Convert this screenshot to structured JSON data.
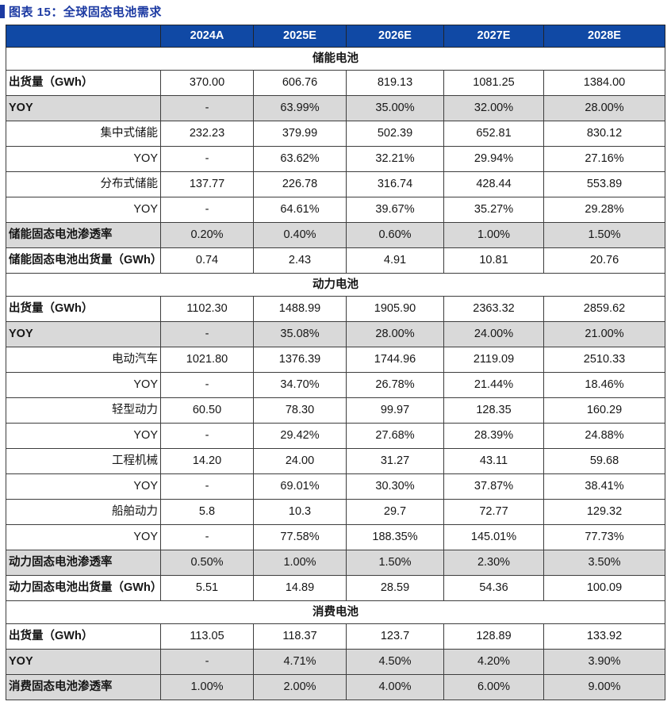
{
  "title": "图表 15：全球固态电池需求",
  "colors": {
    "title_blue": "#1c3aa2",
    "header_blue": "#1049a5",
    "shaded_gray": "#d9d9d9",
    "border": "#3d3d3d"
  },
  "table": {
    "columns": [
      "",
      "2024A",
      "2025E",
      "2026E",
      "2027E",
      "2028E"
    ],
    "sections": [
      {
        "title": "储能电池",
        "rows": [
          {
            "label": "出货量（GWh）",
            "style": "bold-left",
            "shaded": false,
            "values": [
              "370.00",
              "606.76",
              "819.13",
              "1081.25",
              "1384.00"
            ]
          },
          {
            "label": "YOY",
            "style": "bold-left",
            "shaded": true,
            "values": [
              "-",
              "63.99%",
              "35.00%",
              "32.00%",
              "28.00%"
            ]
          },
          {
            "label": "集中式储能",
            "style": "sub-right",
            "shaded": false,
            "values": [
              "232.23",
              "379.99",
              "502.39",
              "652.81",
              "830.12"
            ]
          },
          {
            "label": "YOY",
            "style": "sub-right",
            "shaded": false,
            "values": [
              "-",
              "63.62%",
              "32.21%",
              "29.94%",
              "27.16%"
            ]
          },
          {
            "label": "分布式储能",
            "style": "sub-right",
            "shaded": false,
            "values": [
              "137.77",
              "226.78",
              "316.74",
              "428.44",
              "553.89"
            ]
          },
          {
            "label": "YOY",
            "style": "sub-right",
            "shaded": false,
            "values": [
              "-",
              "64.61%",
              "39.67%",
              "35.27%",
              "29.28%"
            ]
          },
          {
            "label": "储能固态电池渗透率",
            "style": "bold-left",
            "shaded": true,
            "values": [
              "0.20%",
              "0.40%",
              "0.60%",
              "1.00%",
              "1.50%"
            ]
          },
          {
            "label": "储能固态电池出货量（GWh）",
            "style": "bold-left",
            "shaded": false,
            "values": [
              "0.74",
              "2.43",
              "4.91",
              "10.81",
              "20.76"
            ]
          }
        ]
      },
      {
        "title": "动力电池",
        "rows": [
          {
            "label": "出货量（GWh）",
            "style": "bold-left",
            "shaded": false,
            "values": [
              "1102.30",
              "1488.99",
              "1905.90",
              "2363.32",
              "2859.62"
            ]
          },
          {
            "label": "YOY",
            "style": "bold-left",
            "shaded": true,
            "values": [
              "-",
              "35.08%",
              "28.00%",
              "24.00%",
              "21.00%"
            ]
          },
          {
            "label": "电动汽车",
            "style": "sub-right",
            "shaded": false,
            "values": [
              "1021.80",
              "1376.39",
              "1744.96",
              "2119.09",
              "2510.33"
            ]
          },
          {
            "label": "YOY",
            "style": "sub-right",
            "shaded": false,
            "values": [
              "-",
              "34.70%",
              "26.78%",
              "21.44%",
              "18.46%"
            ]
          },
          {
            "label": "轻型动力",
            "style": "sub-right",
            "shaded": false,
            "values": [
              "60.50",
              "78.30",
              "99.97",
              "128.35",
              "160.29"
            ]
          },
          {
            "label": "YOY",
            "style": "sub-right",
            "shaded": false,
            "values": [
              "-",
              "29.42%",
              "27.68%",
              "28.39%",
              "24.88%"
            ]
          },
          {
            "label": "工程机械",
            "style": "sub-right",
            "shaded": false,
            "values": [
              "14.20",
              "24.00",
              "31.27",
              "43.11",
              "59.68"
            ]
          },
          {
            "label": "YOY",
            "style": "sub-right",
            "shaded": false,
            "values": [
              "-",
              "69.01%",
              "30.30%",
              "37.87%",
              "38.41%"
            ]
          },
          {
            "label": "船舶动力",
            "style": "sub-right",
            "shaded": false,
            "values": [
              "5.8",
              "10.3",
              "29.7",
              "72.77",
              "129.32"
            ]
          },
          {
            "label": "YOY",
            "style": "sub-right",
            "shaded": false,
            "values": [
              "-",
              "77.58%",
              "188.35%",
              "145.01%",
              "77.73%"
            ]
          },
          {
            "label": "动力固态电池渗透率",
            "style": "bold-left",
            "shaded": true,
            "values": [
              "0.50%",
              "1.00%",
              "1.50%",
              "2.30%",
              "3.50%"
            ]
          },
          {
            "label": "动力固态电池出货量（GWh）",
            "style": "bold-left",
            "shaded": false,
            "values": [
              "5.51",
              "14.89",
              "28.59",
              "54.36",
              "100.09"
            ]
          }
        ]
      },
      {
        "title": "消费电池",
        "rows": [
          {
            "label": "出货量（GWh）",
            "style": "bold-left",
            "shaded": false,
            "values": [
              "113.05",
              "118.37",
              "123.7",
              "128.89",
              "133.92"
            ]
          },
          {
            "label": "YOY",
            "style": "bold-left",
            "shaded": true,
            "values": [
              "-",
              "4.71%",
              "4.50%",
              "4.20%",
              "3.90%"
            ]
          },
          {
            "label": "消费固态电池渗透率",
            "style": "bold-left",
            "shaded": true,
            "values": [
              "1.00%",
              "2.00%",
              "4.00%",
              "6.00%",
              "9.00%"
            ]
          }
        ]
      }
    ]
  }
}
